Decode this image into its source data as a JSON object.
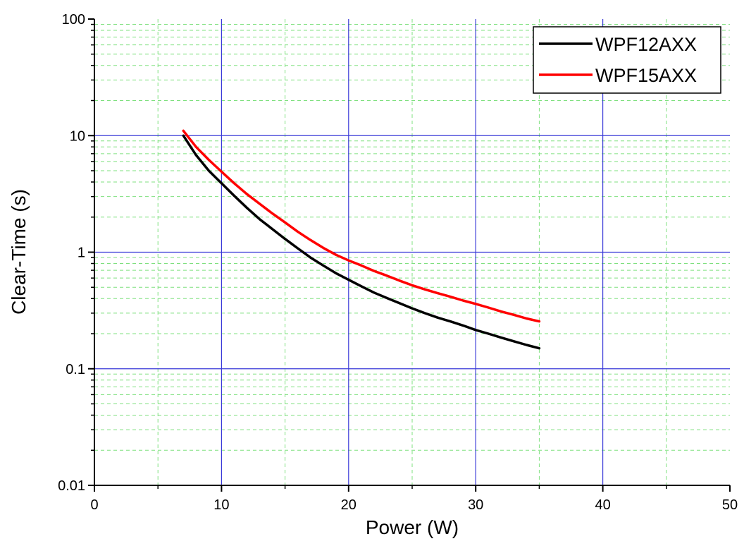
{
  "chart_data": {
    "type": "line",
    "title": "",
    "xlabel": "Power (W)",
    "ylabel": "Clear-Time (s)",
    "xlim": [
      0,
      50
    ],
    "ylim": [
      0.01,
      100
    ],
    "yscale": "log",
    "x_ticks": [
      0,
      10,
      20,
      30,
      40,
      50
    ],
    "x_tick_labels": [
      "0",
      "10",
      "20",
      "30",
      "40",
      "50"
    ],
    "y_ticks": [
      0.01,
      0.1,
      1,
      10,
      100
    ],
    "y_tick_labels": [
      "0.01",
      "0.1",
      "1",
      "10",
      "100"
    ],
    "grid": {
      "major": true,
      "minor": true,
      "major_color": "#3a3ad8",
      "minor_color": "#7fe07f"
    },
    "legend_position": "top-right",
    "series": [
      {
        "name": "WPF12AXX",
        "color": "#000000",
        "x": [
          7,
          8,
          9,
          10,
          11,
          12,
          13,
          14,
          15,
          16,
          17,
          18,
          19,
          20,
          21,
          22,
          23,
          24,
          25,
          26,
          27,
          28,
          29,
          30,
          31,
          32,
          33,
          34,
          35
        ],
        "y": [
          10,
          6.8,
          5.0,
          3.9,
          3.05,
          2.4,
          1.92,
          1.58,
          1.3,
          1.08,
          0.9,
          0.77,
          0.66,
          0.58,
          0.51,
          0.45,
          0.405,
          0.365,
          0.33,
          0.3,
          0.275,
          0.255,
          0.235,
          0.215,
          0.2,
          0.185,
          0.172,
          0.16,
          0.15
        ]
      },
      {
        "name": "WPF15AXX",
        "color": "#ff0000",
        "x": [
          7,
          8,
          9,
          10,
          11,
          12,
          13,
          14,
          15,
          16,
          17,
          18,
          19,
          20,
          21,
          22,
          23,
          24,
          25,
          26,
          27,
          28,
          29,
          30,
          31,
          32,
          33,
          34,
          35
        ],
        "y": [
          11,
          8.0,
          6.2,
          4.9,
          3.9,
          3.15,
          2.6,
          2.15,
          1.8,
          1.5,
          1.27,
          1.09,
          0.95,
          0.85,
          0.77,
          0.69,
          0.63,
          0.57,
          0.52,
          0.48,
          0.445,
          0.415,
          0.385,
          0.36,
          0.335,
          0.31,
          0.29,
          0.27,
          0.255
        ]
      }
    ]
  }
}
